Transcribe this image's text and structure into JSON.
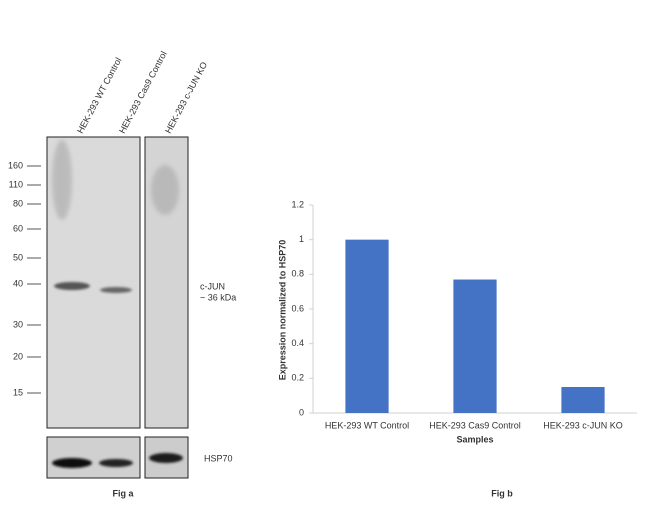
{
  "blot": {
    "lanes": [
      "HEK-293 WT Control",
      "HEK-293 Cas9 Control",
      "HEK-293 c-JUN KO"
    ],
    "markers": [
      160,
      110,
      80,
      60,
      50,
      40,
      30,
      20,
      15
    ],
    "band_label": "c-JUN",
    "band_size": "~ 36 kDa",
    "loading_label": "HSP70",
    "caption": "Fig a"
  },
  "chart_data": {
    "type": "bar",
    "caption": "Fig b",
    "categories": [
      "HEK-293 WT Control",
      "HEK-293 Cas9 Control",
      "HEK-293 c-JUN KO"
    ],
    "values": [
      1,
      0.77,
      0.15
    ],
    "color": "#4472c4",
    "xlabel": "Samples",
    "ylabel": "Expression normalized to HSP70",
    "ylim": [
      0,
      1.2
    ],
    "yticks": [
      0,
      0.2,
      0.4,
      0.6,
      0.8,
      1,
      1.2
    ],
    "grid": false
  }
}
